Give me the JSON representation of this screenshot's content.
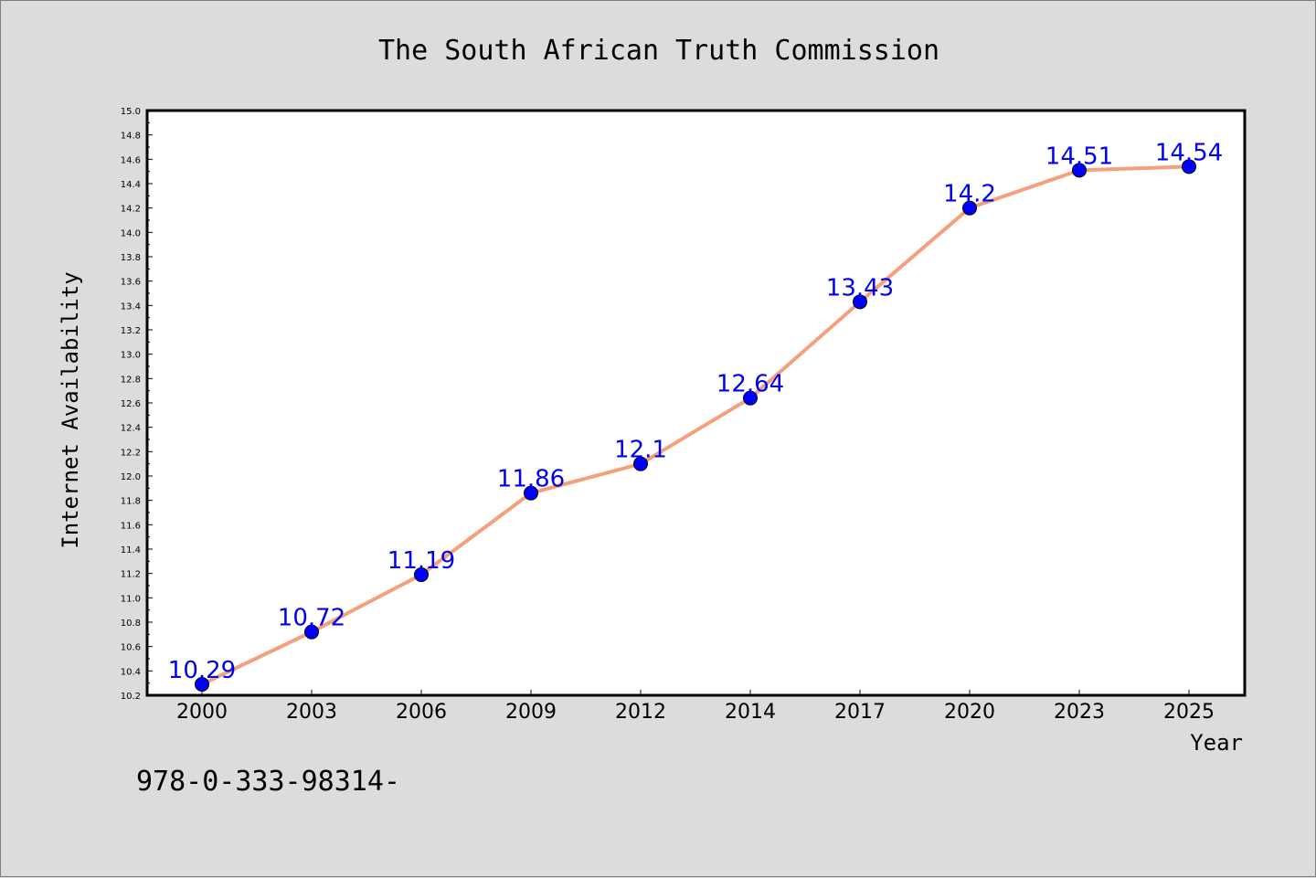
{
  "chart_data": {
    "type": "line",
    "title": "The South African Truth Commission",
    "xlabel": "Year",
    "ylabel": "Internet Availability",
    "categories": [
      "2000",
      "2003",
      "2006",
      "2009",
      "2012",
      "2014",
      "2017",
      "2020",
      "2023",
      "2025"
    ],
    "series": [
      {
        "values": [
          10.29,
          10.72,
          11.19,
          11.86,
          12.1,
          12.64,
          13.43,
          14.2,
          14.51,
          14.54
        ],
        "data_labels": [
          "10.29",
          "10.72",
          "11.19",
          "11.86",
          "12.1",
          "12.64",
          "13.43",
          "14.2",
          "14.51",
          "14.54"
        ],
        "line_color": "#f4a07c",
        "marker_color": "#0000ff"
      }
    ],
    "ylim": [
      10.2,
      15.0
    ],
    "yticks": [
      "10.2",
      "10.4",
      "10.6",
      "10.8",
      "11.0",
      "11.2",
      "11.4",
      "11.6",
      "11.8",
      "12.0",
      "12.2",
      "12.4",
      "12.6",
      "12.8",
      "13.0",
      "13.2",
      "13.4",
      "13.6",
      "13.8",
      "14.0",
      "14.2",
      "14.4",
      "14.6",
      "14.8",
      "15.0"
    ],
    "grid": false,
    "legend": "none"
  },
  "footer": {
    "isbn": "978-0-333-98314-"
  },
  "colors": {
    "background": "#dcdcdc",
    "plot_background": "#ffffff",
    "data_label": "#0000ee"
  }
}
